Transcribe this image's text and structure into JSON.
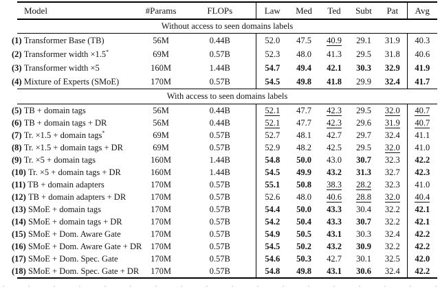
{
  "table": {
    "headers": [
      "Model",
      "#Params",
      "FLOPs",
      "Law",
      "Med",
      "Ted",
      "Subt",
      "Pat",
      "Avg"
    ],
    "sections": [
      {
        "title": "Without access to seen domains labels",
        "rows": [
          {
            "num": "(1)",
            "model": "Transformer Base (TB)",
            "star": "",
            "params": "56M",
            "flops": "0.44B",
            "metrics": [
              {
                "v": "52.0"
              },
              {
                "v": "47.5"
              },
              {
                "v": "40.9",
                "u": true
              },
              {
                "v": "29.1"
              },
              {
                "v": "31.9"
              },
              {
                "v": "40.3"
              }
            ]
          },
          {
            "num": "(2)",
            "model": "Transformer width ×1.5",
            "star": "*",
            "params": "69M",
            "flops": "0.57B",
            "metrics": [
              {
                "v": "52.3"
              },
              {
                "v": "48.0"
              },
              {
                "v": "41.3"
              },
              {
                "v": "29.5"
              },
              {
                "v": "31.8"
              },
              {
                "v": "40.6"
              }
            ]
          },
          {
            "num": "(3)",
            "model": "Transformer width ×5",
            "star": "",
            "params": "160M",
            "flops": "1.44B",
            "metrics": [
              {
                "v": "54.7",
                "b": true
              },
              {
                "v": "49.4",
                "b": true
              },
              {
                "v": "42.1",
                "b": true
              },
              {
                "v": "30.3",
                "b": true
              },
              {
                "v": "32.9",
                "b": true
              },
              {
                "v": "41.9",
                "b": true
              }
            ]
          },
          {
            "num": "(4)",
            "model": "Mixture of Experts (SMoE)",
            "star": "",
            "params": "170M",
            "flops": "0.57B",
            "metrics": [
              {
                "v": "54.5",
                "b": true
              },
              {
                "v": "49.8",
                "b": true
              },
              {
                "v": "41.8",
                "b": true
              },
              {
                "v": "29.9"
              },
              {
                "v": "32.4",
                "b": true
              },
              {
                "v": "41.7",
                "b": true
              }
            ]
          }
        ]
      },
      {
        "title": "With access to seen domains labels",
        "rows": [
          {
            "num": "(5)",
            "model": "TB + domain tags",
            "star": "",
            "params": "56M",
            "flops": "0.44B",
            "metrics": [
              {
                "v": "52.1",
                "u": true
              },
              {
                "v": "47.7"
              },
              {
                "v": "42.3",
                "u": true
              },
              {
                "v": "29.5"
              },
              {
                "v": "32.0",
                "u": true
              },
              {
                "v": "40.7",
                "u": true
              }
            ]
          },
          {
            "num": "(6)",
            "model": "TB + domain tags + DR",
            "star": "",
            "params": "56M",
            "flops": "0.44B",
            "metrics": [
              {
                "v": "52.1",
                "u": true
              },
              {
                "v": "47.7"
              },
              {
                "v": "42.3",
                "u": true
              },
              {
                "v": "29.6"
              },
              {
                "v": "31.9",
                "u": true
              },
              {
                "v": "40.7",
                "u": true
              }
            ]
          },
          {
            "num": "(7)",
            "model": "Tr. ×1.5 + domain tags",
            "star": "*",
            "params": "69M",
            "flops": "0.57B",
            "metrics": [
              {
                "v": "52.7"
              },
              {
                "v": "48.1"
              },
              {
                "v": "42.7"
              },
              {
                "v": "29.7"
              },
              {
                "v": "32.4"
              },
              {
                "v": "41.1"
              }
            ]
          },
          {
            "num": "(8)",
            "model": "Tr. ×1.5 + domain tags + DR",
            "star": "",
            "params": "69M",
            "flops": "0.57B",
            "metrics": [
              {
                "v": "52.9"
              },
              {
                "v": "48.2"
              },
              {
                "v": "42.5"
              },
              {
                "v": "29.5"
              },
              {
                "v": "32.0",
                "u": true
              },
              {
                "v": "41.0"
              }
            ]
          },
          {
            "num": "(9)",
            "model": "Tr. ×5 + domain tags",
            "star": "",
            "params": "160M",
            "flops": "1.44B",
            "metrics": [
              {
                "v": "54.8",
                "b": true
              },
              {
                "v": "50.0",
                "b": true
              },
              {
                "v": "43.0"
              },
              {
                "v": "30.7",
                "b": true
              },
              {
                "v": "32.3"
              },
              {
                "v": "42.2",
                "b": true
              }
            ]
          },
          {
            "num": "(10)",
            "model": "Tr. ×5 + domain tags + DR",
            "star": "",
            "params": "160M",
            "flops": "1.44B",
            "metrics": [
              {
                "v": "54.5",
                "b": true
              },
              {
                "v": "49.9",
                "b": true
              },
              {
                "v": "43.2",
                "b": true
              },
              {
                "v": "31.3",
                "b": true
              },
              {
                "v": "32.7"
              },
              {
                "v": "42.3",
                "b": true
              }
            ]
          },
          {
            "num": "(11)",
            "model": "TB + domain adapters",
            "star": "",
            "params": "170M",
            "flops": "0.57B",
            "metrics": [
              {
                "v": "55.1",
                "b": true
              },
              {
                "v": "50.8",
                "b": true
              },
              {
                "v": "38.3",
                "u": true
              },
              {
                "v": "28.2",
                "u": true
              },
              {
                "v": "32.3"
              },
              {
                "v": "41.0"
              }
            ]
          },
          {
            "num": "(12)",
            "model": "TB + domain adapters + DR",
            "star": "",
            "params": "170M",
            "flops": "0.57B",
            "metrics": [
              {
                "v": "52.6"
              },
              {
                "v": "48.0"
              },
              {
                "v": "40.6",
                "u": true
              },
              {
                "v": "28.8",
                "u": true
              },
              {
                "v": "32.0",
                "u": true
              },
              {
                "v": "40.4",
                "u": true
              }
            ]
          },
          {
            "num": "(13)",
            "model": "SMoE + domain tags",
            "star": "",
            "params": "170M",
            "flops": "0.57B",
            "metrics": [
              {
                "v": "54.4",
                "b": true
              },
              {
                "v": "50.0",
                "b": true
              },
              {
                "v": "43.3",
                "b": true
              },
              {
                "v": "30.4"
              },
              {
                "v": "32.2"
              },
              {
                "v": "42.1",
                "b": true
              }
            ]
          },
          {
            "num": "(14)",
            "model": "SMoE + domain tags + DR",
            "star": "",
            "params": "170M",
            "flops": "0.57B",
            "metrics": [
              {
                "v": "54.2",
                "b": true
              },
              {
                "v": "50.4",
                "b": true
              },
              {
                "v": "43.3",
                "b": true
              },
              {
                "v": "30.7",
                "b": true
              },
              {
                "v": "32.2"
              },
              {
                "v": "42.1",
                "b": true
              }
            ]
          },
          {
            "num": "(15)",
            "model": "SMoE + Dom. Aware Gate",
            "star": "",
            "params": "170M",
            "flops": "0.57B",
            "metrics": [
              {
                "v": "54.9",
                "b": true
              },
              {
                "v": "50.5",
                "b": true
              },
              {
                "v": "43.1",
                "b": true
              },
              {
                "v": "30.3"
              },
              {
                "v": "32.4"
              },
              {
                "v": "42.2",
                "b": true
              }
            ]
          },
          {
            "num": "(16)",
            "model": "SMoE + Dom. Aware Gate + DR",
            "star": "",
            "params": "170M",
            "flops": "0.57B",
            "metrics": [
              {
                "v": "54.5",
                "b": true
              },
              {
                "v": "50.2",
                "b": true
              },
              {
                "v": "43.2",
                "b": true
              },
              {
                "v": "30.9",
                "b": true
              },
              {
                "v": "32.2"
              },
              {
                "v": "42.2",
                "b": true
              }
            ]
          },
          {
            "num": "(17)",
            "model": "SMoE + Dom. Spec. Gate",
            "star": "",
            "params": "170M",
            "flops": "0.57B",
            "metrics": [
              {
                "v": "54.6",
                "b": true
              },
              {
                "v": "50.3",
                "b": true
              },
              {
                "v": "42.7"
              },
              {
                "v": "30.1"
              },
              {
                "v": "32.5"
              },
              {
                "v": "42.0",
                "b": true
              }
            ]
          },
          {
            "num": "(18)",
            "model": "SMoE + Dom. Spec. Gate + DR",
            "star": "",
            "params": "170M",
            "flops": "0.57B",
            "metrics": [
              {
                "v": "54.8",
                "b": true
              },
              {
                "v": "49.8",
                "b": true
              },
              {
                "v": "43.1",
                "b": true
              },
              {
                "v": "30.6",
                "b": true
              },
              {
                "v": "32.4"
              },
              {
                "v": "42.2",
                "b": true
              }
            ]
          }
        ]
      }
    ]
  },
  "colors": {
    "text": "#141414",
    "rule": "#000000",
    "background": "#ffffff"
  }
}
